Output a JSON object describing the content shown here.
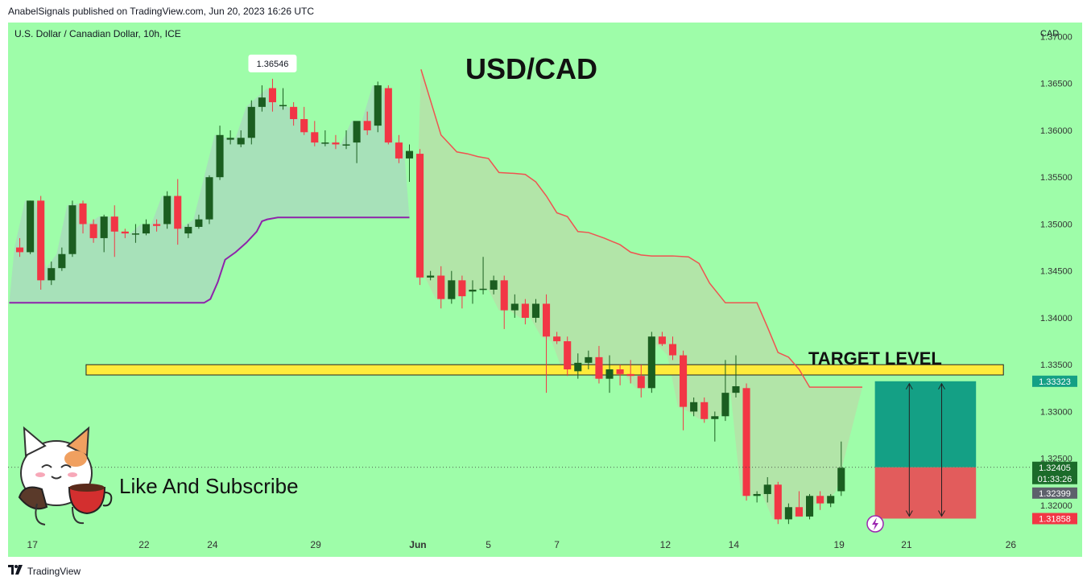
{
  "header": {
    "publisher_line": "AnabelSignals published on TradingView.com, Jun 20, 2023 16:26 UTC"
  },
  "footer": {
    "brand": "TradingView",
    "logo_icon": "tradingview-logo-icon"
  },
  "chart_data": {
    "type": "candlestick",
    "symbol_line": "U.S. Dollar / Canadian Dollar, 10h, ICE",
    "title": "USD/CAD",
    "currency": "CAD",
    "ylim": [
      1.3145,
      1.3715
    ],
    "y_ticks": [
      "1.37000",
      "1.36500",
      "1.36000",
      "1.35500",
      "1.35000",
      "1.34500",
      "1.34000",
      "1.33500",
      "1.33000",
      "1.32500",
      "1.32000"
    ],
    "y_tick_values": [
      1.37,
      1.365,
      1.36,
      1.355,
      1.35,
      1.345,
      1.34,
      1.335,
      1.33,
      1.325,
      1.32
    ],
    "x_ticks": [
      "17",
      "22",
      "24",
      "29",
      "Jun",
      "5",
      "7",
      "12",
      "14",
      "19",
      "21",
      "26"
    ],
    "x_tick_index": [
      1.7,
      12.3,
      18.8,
      28.6,
      38.3,
      45.0,
      51.5,
      61.8,
      68.3,
      78.3,
      84.7,
      94.6
    ],
    "candles": [
      [
        1.3475,
        1.3485,
        1.3465,
        1.347
      ],
      [
        1.347,
        1.3525,
        1.3468,
        1.3525
      ],
      [
        1.3525,
        1.353,
        1.343,
        1.344
      ],
      [
        1.344,
        1.346,
        1.3435,
        1.3453
      ],
      [
        1.3453,
        1.3475,
        1.345,
        1.3468
      ],
      [
        1.3468,
        1.3525,
        1.3465,
        1.352
      ],
      [
        1.3522,
        1.3525,
        1.349,
        1.35
      ],
      [
        1.35,
        1.3505,
        1.348,
        1.3485
      ],
      [
        1.3485,
        1.351,
        1.347,
        1.3508
      ],
      [
        1.3508,
        1.352,
        1.3465,
        1.3492
      ],
      [
        1.3492,
        1.3495,
        1.3485,
        1.349
      ],
      [
        1.349,
        1.35,
        1.348,
        1.349
      ],
      [
        1.349,
        1.3505,
        1.3488,
        1.35
      ],
      [
        1.35,
        1.3505,
        1.3492,
        1.3498
      ],
      [
        1.35,
        1.3535,
        1.3495,
        1.353
      ],
      [
        1.353,
        1.3548,
        1.3478,
        1.3495
      ],
      [
        1.349,
        1.35,
        1.3485,
        1.3497
      ],
      [
        1.3497,
        1.351,
        1.3495,
        1.3505
      ],
      [
        1.3505,
        1.3552,
        1.35,
        1.355
      ],
      [
        1.355,
        1.3605,
        1.3547,
        1.3595
      ],
      [
        1.359,
        1.36,
        1.3585,
        1.3592
      ],
      [
        1.3585,
        1.36,
        1.3582,
        1.3592
      ],
      [
        1.3592,
        1.3632,
        1.3585,
        1.3625
      ],
      [
        1.3625,
        1.3648,
        1.362,
        1.3635
      ],
      [
        1.3645,
        1.3655,
        1.362,
        1.363
      ],
      [
        1.3627,
        1.3645,
        1.3622,
        1.3627
      ],
      [
        1.3625,
        1.363,
        1.3605,
        1.3612
      ],
      [
        1.3612,
        1.3625,
        1.3595,
        1.3598
      ],
      [
        1.3598,
        1.361,
        1.3583,
        1.3587
      ],
      [
        1.3587,
        1.36,
        1.3583,
        1.3587
      ],
      [
        1.3587,
        1.3595,
        1.358,
        1.3585
      ],
      [
        1.3585,
        1.36,
        1.358,
        1.3585
      ],
      [
        1.3587,
        1.3608,
        1.3565,
        1.361
      ],
      [
        1.361,
        1.362,
        1.3595,
        1.36
      ],
      [
        1.3605,
        1.3652,
        1.3598,
        1.3648
      ],
      [
        1.3645,
        1.3648,
        1.3585,
        1.3587
      ],
      [
        1.3587,
        1.3595,
        1.3565,
        1.357
      ],
      [
        1.357,
        1.3585,
        1.3545,
        1.3578
      ],
      [
        1.3575,
        1.358,
        1.3435,
        1.3443
      ],
      [
        1.3443,
        1.345,
        1.344,
        1.3445
      ],
      [
        1.3445,
        1.3455,
        1.341,
        1.342
      ],
      [
        1.342,
        1.345,
        1.3415,
        1.344
      ],
      [
        1.344,
        1.3445,
        1.341,
        1.3423
      ],
      [
        1.3428,
        1.344,
        1.3415,
        1.343
      ],
      [
        1.343,
        1.3465,
        1.3425,
        1.3431
      ],
      [
        1.343,
        1.3445,
        1.3425,
        1.344
      ],
      [
        1.344,
        1.3445,
        1.3388,
        1.3408
      ],
      [
        1.3408,
        1.3425,
        1.34,
        1.3415
      ],
      [
        1.3415,
        1.342,
        1.3393,
        1.34
      ],
      [
        1.34,
        1.342,
        1.3395,
        1.3415
      ],
      [
        1.3415,
        1.3425,
        1.332,
        1.338
      ],
      [
        1.338,
        1.3385,
        1.3372,
        1.3375
      ],
      [
        1.3375,
        1.338,
        1.3338,
        1.3345
      ],
      [
        1.3343,
        1.3362,
        1.3335,
        1.3352
      ],
      [
        1.3352,
        1.3365,
        1.3345,
        1.3358
      ],
      [
        1.3358,
        1.337,
        1.333,
        1.3335
      ],
      [
        1.3335,
        1.336,
        1.332,
        1.3345
      ],
      [
        1.3345,
        1.335,
        1.3328,
        1.334
      ],
      [
        1.334,
        1.3355,
        1.333,
        1.3338
      ],
      [
        1.3338,
        1.335,
        1.3315,
        1.3325
      ],
      [
        1.3325,
        1.3385,
        1.332,
        1.338
      ],
      [
        1.338,
        1.3385,
        1.337,
        1.3372
      ],
      [
        1.3372,
        1.338,
        1.3355,
        1.336
      ],
      [
        1.336,
        1.3365,
        1.328,
        1.3305
      ],
      [
        1.33,
        1.3315,
        1.3295,
        1.331
      ],
      [
        1.331,
        1.3315,
        1.3288,
        1.3292
      ],
      [
        1.3292,
        1.33,
        1.3268,
        1.3295
      ],
      [
        1.3295,
        1.3355,
        1.329,
        1.332
      ],
      [
        1.332,
        1.336,
        1.3315,
        1.3327
      ],
      [
        1.3325,
        1.333,
        1.3205,
        1.321
      ],
      [
        1.321,
        1.3215,
        1.3203,
        1.3212
      ],
      [
        1.3212,
        1.323,
        1.3203,
        1.3222
      ],
      [
        1.3222,
        1.3225,
        1.318,
        1.3185
      ],
      [
        1.3185,
        1.3202,
        1.318,
        1.3198
      ],
      [
        1.3198,
        1.3215,
        1.3193,
        1.3188
      ],
      [
        1.3188,
        1.3212,
        1.3185,
        1.321
      ],
      [
        1.321,
        1.3215,
        1.3195,
        1.3202
      ],
      [
        1.3202,
        1.3212,
        1.3198,
        1.321
      ],
      [
        1.3215,
        1.3268,
        1.321,
        1.324
      ]
    ],
    "high_label": "1.36546",
    "upper_line": [
      [
        38.6,
        1.3665
      ],
      [
        40.5,
        1.3595
      ],
      [
        42,
        1.3577
      ],
      [
        43,
        1.3575
      ],
      [
        44,
        1.3572
      ],
      [
        45,
        1.357
      ],
      [
        46,
        1.3555
      ],
      [
        47.5,
        1.3554
      ],
      [
        48.5,
        1.3553
      ],
      [
        49.5,
        1.3545
      ],
      [
        50.5,
        1.353
      ],
      [
        51.5,
        1.3512
      ],
      [
        52.5,
        1.3508
      ],
      [
        53.5,
        1.3492
      ],
      [
        54.5,
        1.3491
      ],
      [
        56,
        1.3485
      ],
      [
        57.5,
        1.3478
      ],
      [
        58.5,
        1.347
      ],
      [
        59.5,
        1.3467
      ],
      [
        60.5,
        1.3466
      ],
      [
        62.5,
        1.3466
      ],
      [
        64,
        1.3465
      ],
      [
        65,
        1.3458
      ],
      [
        66,
        1.3437
      ],
      [
        67.5,
        1.3416
      ],
      [
        70.5,
        1.3416
      ],
      [
        71.5,
        1.339
      ],
      [
        72.5,
        1.3363
      ],
      [
        73.5,
        1.3358
      ],
      [
        74.5,
        1.3345
      ],
      [
        75.5,
        1.3326
      ],
      [
        77,
        1.3326
      ],
      [
        80.5,
        1.3326
      ]
    ],
    "lower_line": [
      [
        -0.5,
        1.3416
      ],
      [
        18,
        1.3416
      ],
      [
        18.6,
        1.342
      ],
      [
        19.3,
        1.3438
      ],
      [
        20,
        1.3462
      ],
      [
        21,
        1.347
      ],
      [
        22,
        1.348
      ],
      [
        23,
        1.3492
      ],
      [
        23.5,
        1.3503
      ],
      [
        24,
        1.3505
      ],
      [
        25,
        1.3507
      ],
      [
        37.5,
        1.3507
      ]
    ],
    "target_label": "TARGET LEVEL",
    "target_zone": [
      1.3339,
      1.335
    ],
    "target_zone_x": [
      6.8,
      93.9
    ],
    "position": {
      "entry": 1.32405,
      "target": 1.33323,
      "stop": 1.31858,
      "x_start": 81.7,
      "x_end": 91.3
    },
    "price_labels": [
      {
        "text": "1.33323",
        "value": 1.33323,
        "color": "#14a085"
      },
      {
        "text": "1.32405",
        "value": 1.32405,
        "color": "#1b6b2a",
        "extra": "01:33:26"
      },
      {
        "text": "1.32399",
        "value": 1.32399,
        "color": "#5d606b"
      },
      {
        "text": "1.31858",
        "value": 1.31858,
        "color": "#f23645"
      }
    ],
    "promo_text": "Like And Subscribe",
    "promo_icon": "cat-mascot-icon",
    "flash_icon": "lightning-icon",
    "colors": {
      "up": "#1b5e20",
      "down": "#f23645",
      "background": "#9efda9",
      "zone": "#ffeb3b",
      "profit": "#14a085",
      "loss": "#e25c5c"
    }
  }
}
